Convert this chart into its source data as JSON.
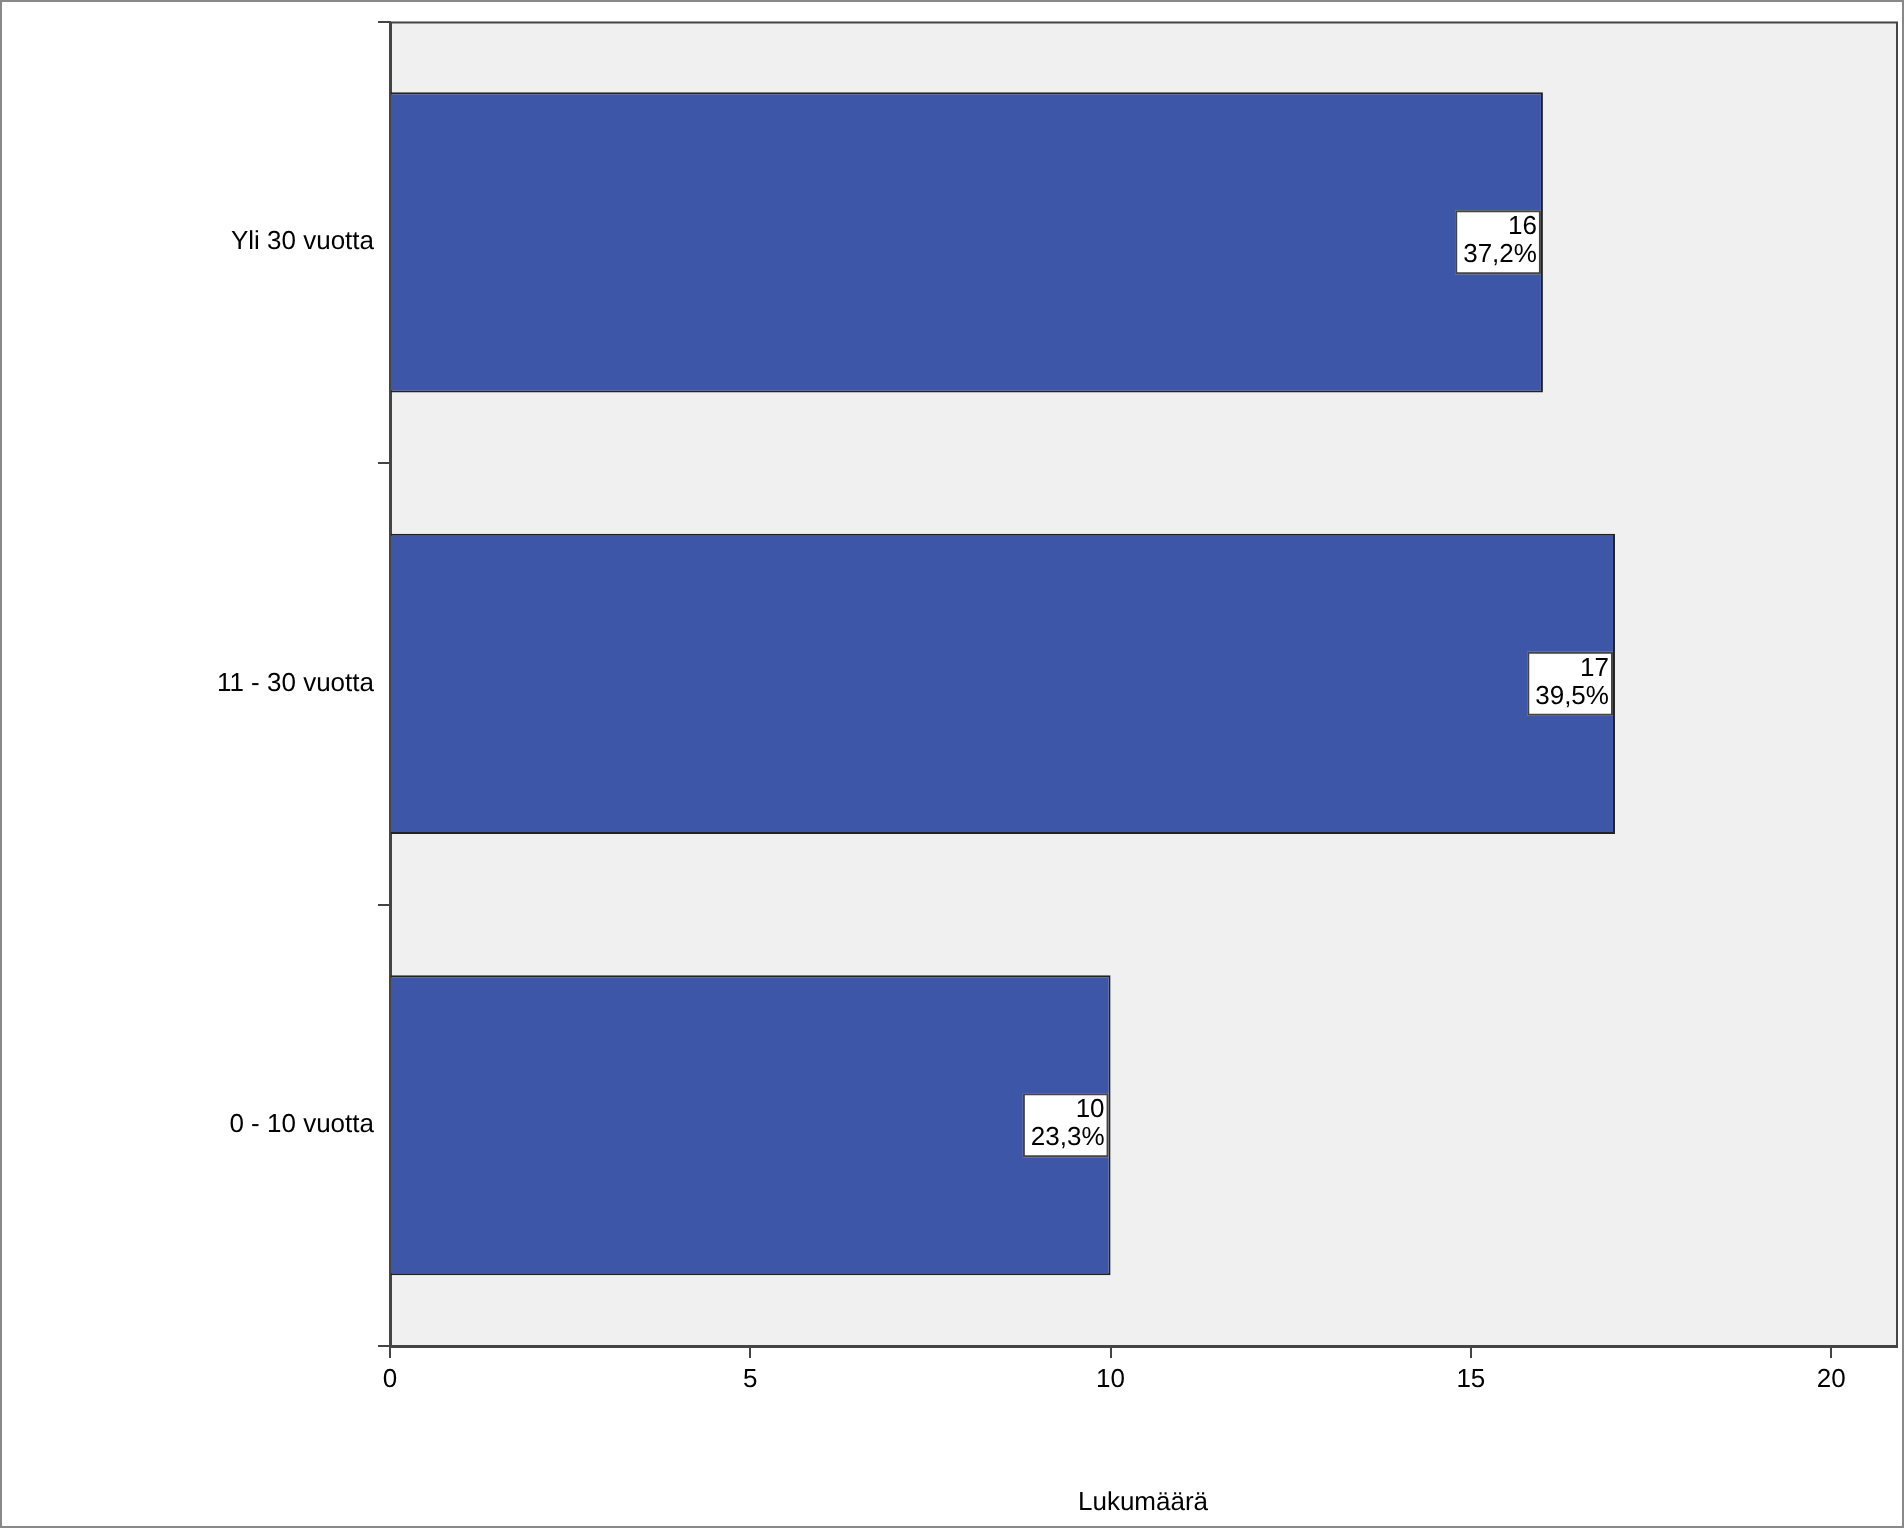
{
  "chart_data": {
    "type": "bar",
    "orientation": "horizontal",
    "categories": [
      "Yli 30 vuotta",
      "11 - 30 vuotta",
      "0 - 10 vuotta"
    ],
    "values": [
      16,
      17,
      10
    ],
    "color": "#3d56a8",
    "value_labels": [
      "16\n37,2%",
      "17\n39,5%",
      "10\n23,3%"
    ],
    "xlabel": "Lukumäärä",
    "xlim": [
      0,
      20.9
    ],
    "xticks": [
      0,
      5,
      10,
      15,
      20
    ],
    "grid": false,
    "legend": false
  }
}
